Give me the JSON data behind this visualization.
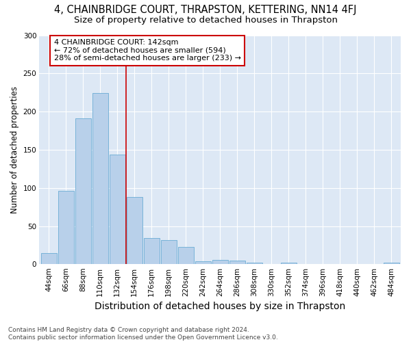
{
  "title": "4, CHAINBRIDGE COURT, THRAPSTON, KETTERING, NN14 4FJ",
  "subtitle": "Size of property relative to detached houses in Thrapston",
  "xlabel": "Distribution of detached houses by size in Thrapston",
  "ylabel": "Number of detached properties",
  "bar_labels": [
    "44sqm",
    "66sqm",
    "88sqm",
    "110sqm",
    "132sqm",
    "154sqm",
    "176sqm",
    "198sqm",
    "220sqm",
    "242sqm",
    "264sqm",
    "286sqm",
    "308sqm",
    "330sqm",
    "352sqm",
    "374sqm",
    "396sqm",
    "418sqm",
    "440sqm",
    "462sqm",
    "484sqm"
  ],
  "bar_values": [
    15,
    96,
    191,
    224,
    144,
    88,
    34,
    32,
    23,
    4,
    6,
    5,
    2,
    0,
    2,
    0,
    0,
    0,
    0,
    0,
    2
  ],
  "bar_color": "#b8d0ea",
  "bar_edgecolor": "#6aacd4",
  "vline_pos": 4.5,
  "vline_color": "#cc0000",
  "annotation_text": "4 CHAINBRIDGE COURT: 142sqm\n← 72% of detached houses are smaller (594)\n28% of semi-detached houses are larger (233) →",
  "annotation_box_edgecolor": "#cc0000",
  "annotation_box_facecolor": "#ffffff",
  "ylim": [
    0,
    300
  ],
  "yticks": [
    0,
    50,
    100,
    150,
    200,
    250,
    300
  ],
  "bg_color": "#dde8f5",
  "footer_text": "Contains HM Land Registry data © Crown copyright and database right 2024.\nContains public sector information licensed under the Open Government Licence v3.0.",
  "title_fontsize": 10.5,
  "subtitle_fontsize": 9.5,
  "xlabel_fontsize": 10,
  "ylabel_fontsize": 8.5,
  "tick_fontsize": 7.5,
  "annotation_fontsize": 8,
  "footer_fontsize": 6.5
}
